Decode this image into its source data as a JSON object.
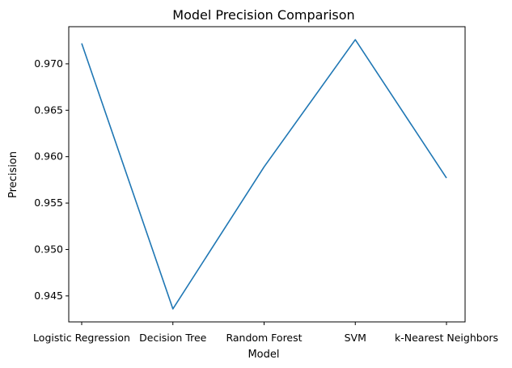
{
  "chart_data": {
    "type": "line",
    "title": "Model Precision Comparison",
    "xlabel": "Model",
    "ylabel": "Precision",
    "categories": [
      "Logistic Regression",
      "Decision Tree",
      "Random Forest",
      "SVM",
      "k-Nearest Neighbors"
    ],
    "series": [
      {
        "values": [
          0.9722,
          0.9436,
          0.9589,
          0.9726,
          0.9577
        ],
        "color": "#1f77b4"
      }
    ],
    "y_ticks": [
      0.945,
      0.95,
      0.955,
      0.96,
      0.965,
      0.97
    ],
    "y_tick_labels": [
      "0.945",
      "0.950",
      "0.955",
      "0.960",
      "0.965",
      "0.970"
    ],
    "ylim": [
      0.9422,
      0.974
    ],
    "grid": false,
    "legend": false
  }
}
